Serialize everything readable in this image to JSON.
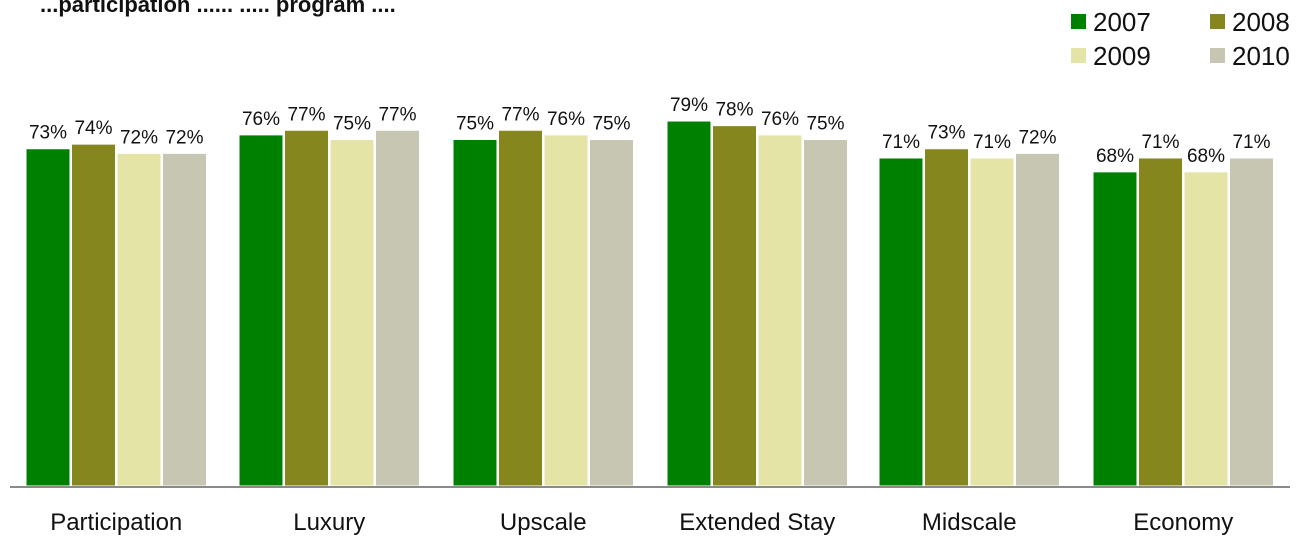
{
  "chart_data": {
    "type": "bar",
    "title_fragment": "...participation ...... ..... program ....",
    "categories": [
      "Participation",
      "Luxury",
      "Upscale",
      "Extended Stay",
      "Midscale",
      "Economy"
    ],
    "series": [
      {
        "name": "2007",
        "color": "#008000",
        "values": [
          73,
          76,
          75,
          79,
          71,
          68
        ],
        "labels": [
          "73%",
          "76%",
          "75%",
          "79%",
          "71%",
          "68%"
        ]
      },
      {
        "name": "2008",
        "color": "#86861f",
        "values": [
          74,
          77,
          77,
          78,
          73,
          71
        ],
        "labels": [
          "74%",
          "77%",
          "77%",
          "78%",
          "73%",
          "71%"
        ]
      },
      {
        "name": "2009",
        "color": "#e4e4a6",
        "values": [
          72,
          75,
          76,
          76,
          71,
          68
        ],
        "labels": [
          "72%",
          "75%",
          "76%",
          "76%",
          "71%",
          "68%"
        ]
      },
      {
        "name": "2010",
        "color": "#c6c6b3",
        "values": [
          72,
          77,
          75,
          75,
          72,
          71
        ],
        "labels": [
          "72%",
          "77%",
          "75%",
          "75%",
          "72%",
          "71%"
        ]
      }
    ],
    "ylim": [
      0,
      100
    ],
    "grid": false,
    "legend_position": "top-right",
    "xlabel": "",
    "ylabel": ""
  }
}
